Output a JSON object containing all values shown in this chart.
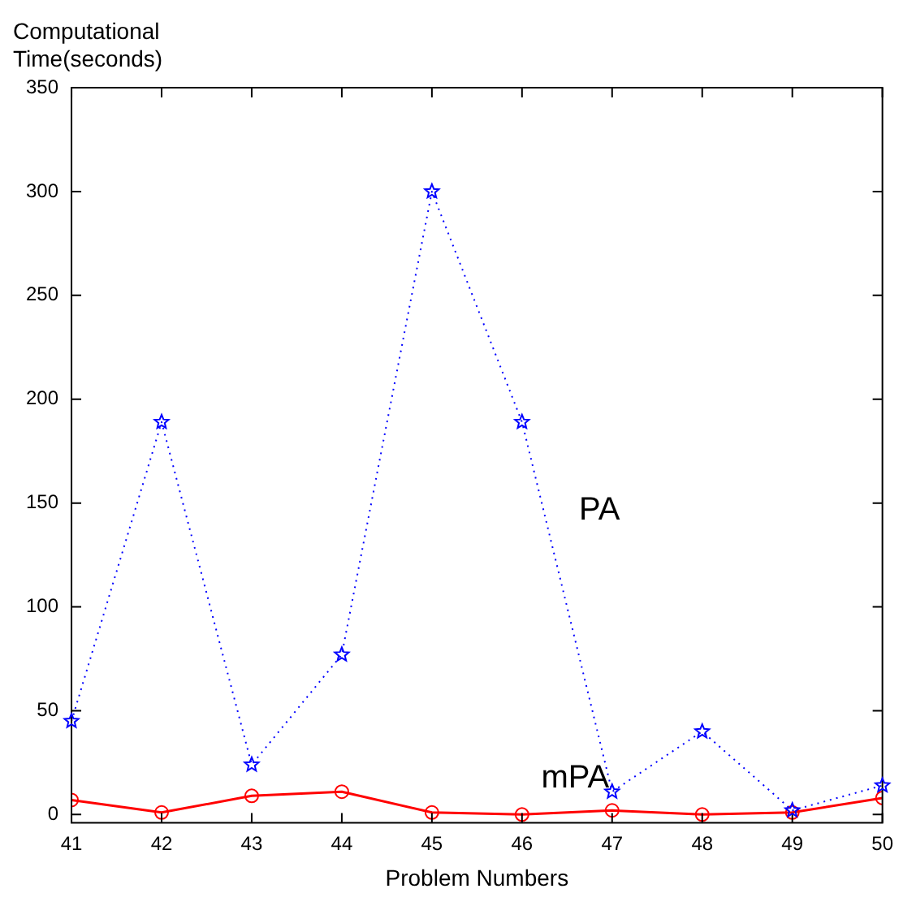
{
  "chart_data": {
    "type": "line",
    "xlabel": "Problem Numbers",
    "ylabel": "Computational Time(seconds)",
    "x": [
      41,
      42,
      43,
      44,
      45,
      46,
      47,
      48,
      49,
      50
    ],
    "xlim": [
      41,
      50
    ],
    "xticks": [
      41,
      42,
      43,
      44,
      45,
      46,
      47,
      48,
      49,
      50
    ],
    "ylim": [
      -4,
      350
    ],
    "yticks": [
      0,
      50,
      100,
      150,
      200,
      250,
      300,
      350
    ],
    "grid": false,
    "legend": false,
    "series": [
      {
        "name": "PA",
        "color": "#0000ff",
        "marker": "star",
        "line_style": "dotted",
        "values": [
          45,
          189,
          24,
          77,
          300,
          189,
          11,
          40,
          2,
          14
        ]
      },
      {
        "name": "mPA",
        "color": "#ff0000",
        "marker": "circle",
        "line_style": "solid",
        "values": [
          7,
          1,
          9,
          11,
          1,
          0,
          2,
          0,
          1,
          8
        ]
      }
    ]
  }
}
